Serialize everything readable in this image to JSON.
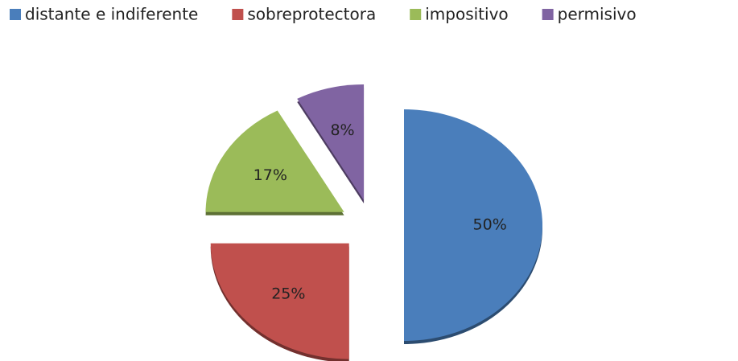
{
  "chart_data": {
    "type": "pie",
    "categories": [
      "distante e indiferente",
      "sobreprotectora",
      "impositivo",
      "permisivo"
    ],
    "values": [
      50,
      25,
      17,
      8
    ],
    "value_labels": [
      "50%",
      "25%",
      "17%",
      "8%"
    ],
    "colors": [
      "#4a7ebb",
      "#c0504d",
      "#9bbb59",
      "#8064a2"
    ],
    "legend": "top",
    "exploded": true
  }
}
